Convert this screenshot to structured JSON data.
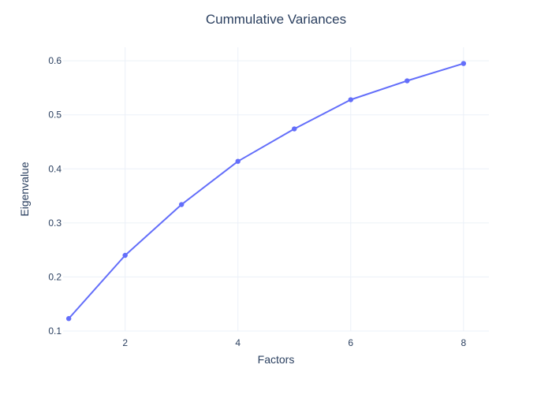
{
  "chart_data": {
    "type": "line",
    "title": "Cummulative Variances",
    "xlabel": "Factors",
    "ylabel": "Eigenvalue",
    "x": [
      1,
      2,
      3,
      4,
      5,
      6,
      7,
      8
    ],
    "series": [
      {
        "values": [
          0.123,
          0.24,
          0.334,
          0.414,
          0.474,
          0.528,
          0.563,
          0.595
        ],
        "color": "#636efa",
        "mode": "lines+markers"
      }
    ],
    "xlim": [
      0.9,
      8.45
    ],
    "ylim": [
      0.1,
      0.625
    ],
    "xticks": [
      2,
      4,
      6,
      8
    ],
    "xtick_labels": [
      "2",
      "4",
      "6",
      "8"
    ],
    "yticks": [
      0.1,
      0.2,
      0.3,
      0.4,
      0.5,
      0.6
    ],
    "ytick_labels": [
      "0.1",
      "0.2",
      "0.3",
      "0.4",
      "0.5",
      "0.6"
    ],
    "grid": true,
    "legend": "none",
    "colors": {
      "background": "#ffffff",
      "grid": "#ebf0f8",
      "text": "#2a3f5f"
    }
  }
}
